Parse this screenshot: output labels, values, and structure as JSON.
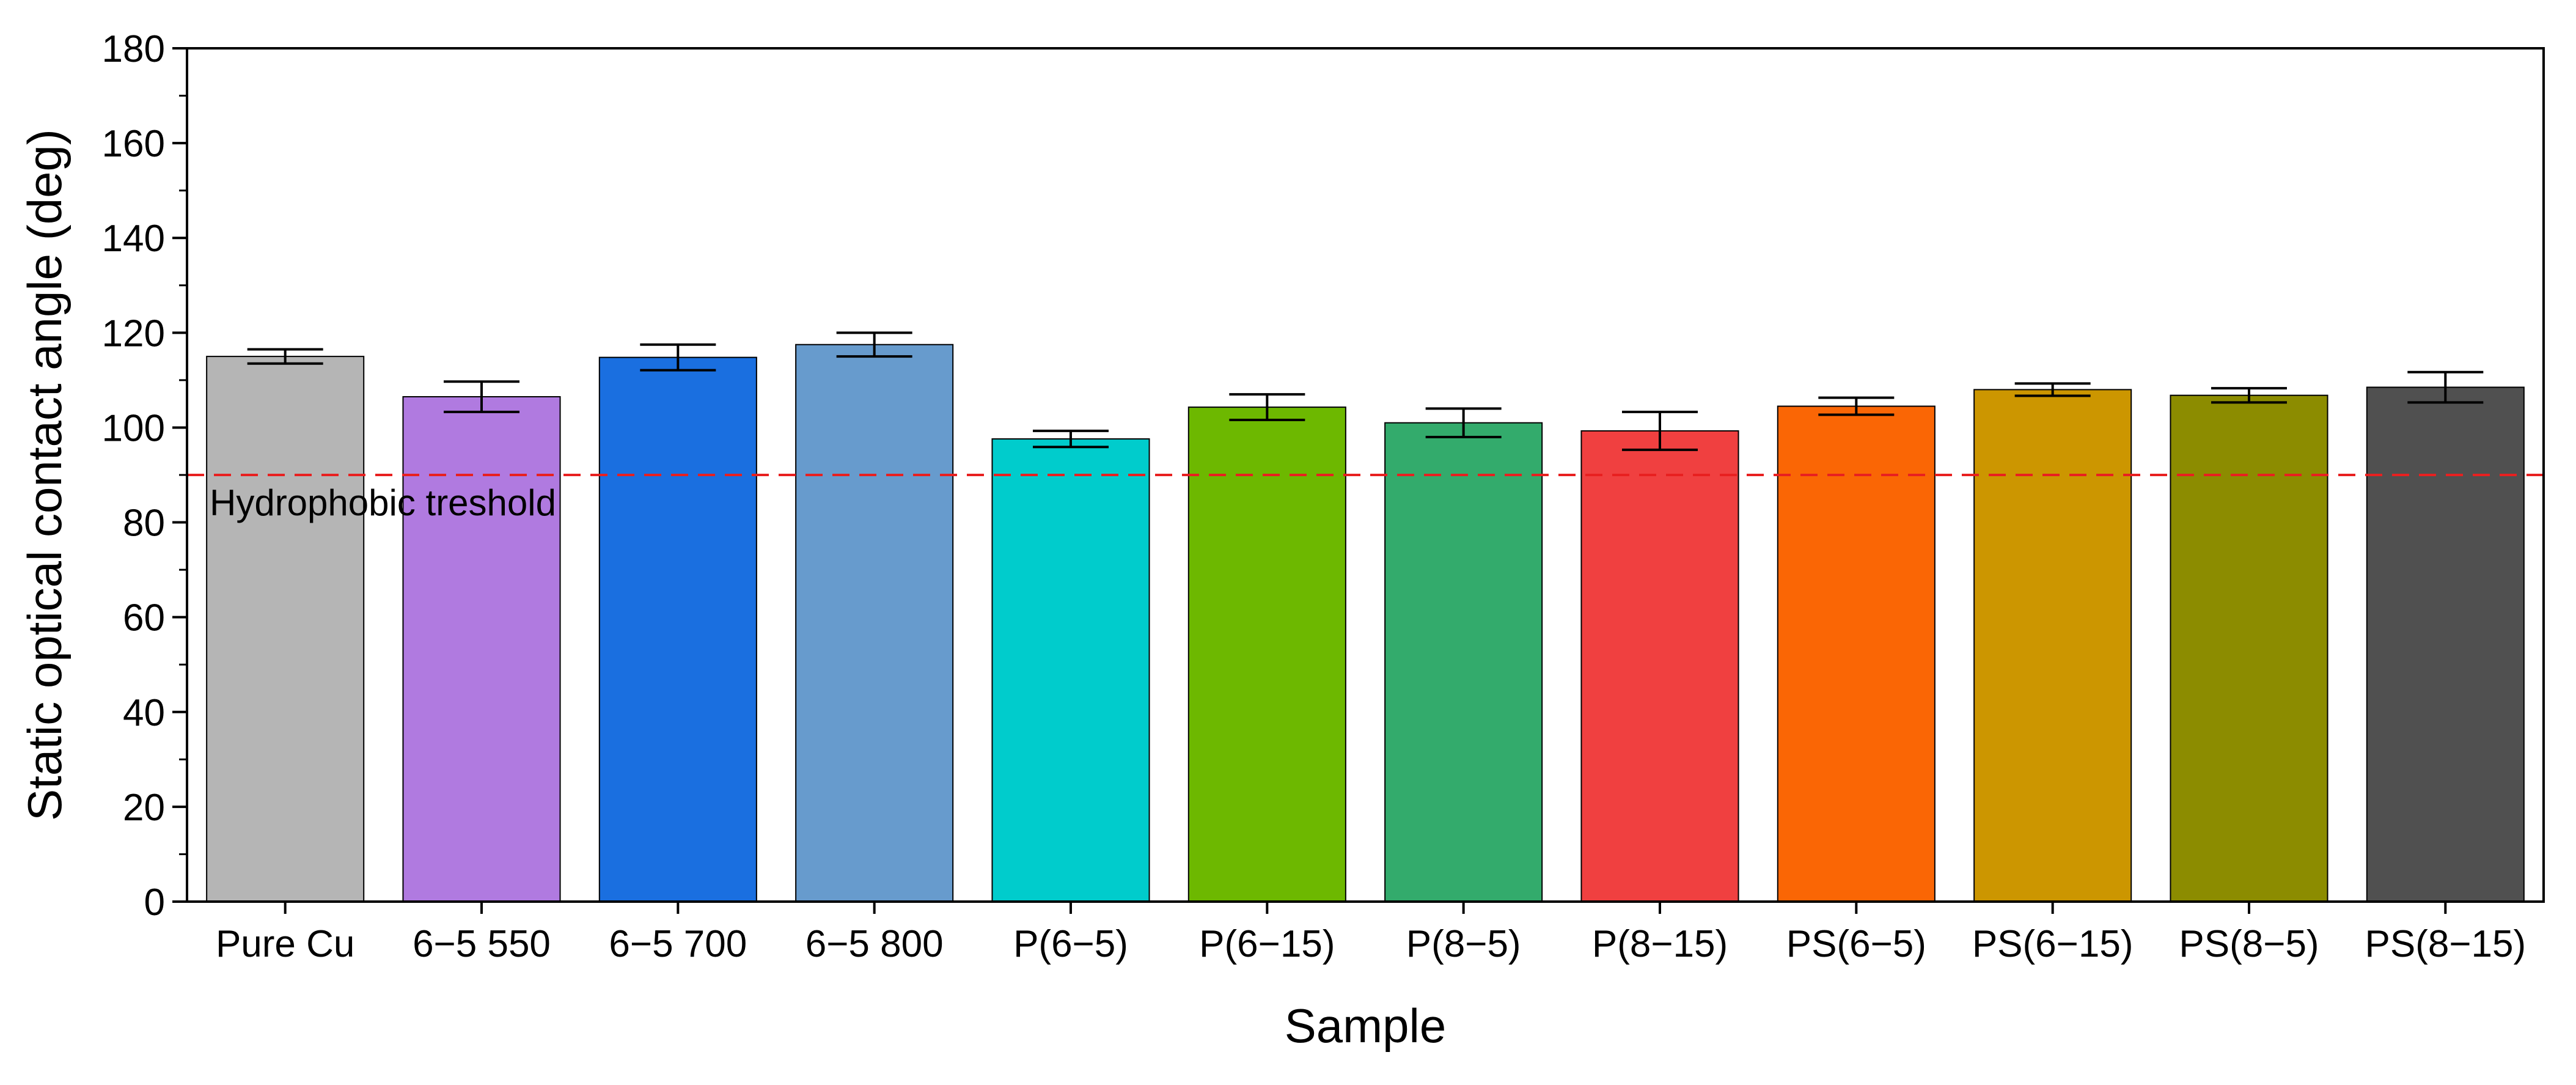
{
  "chart_data": {
    "type": "bar",
    "title": "",
    "xlabel": "Sample",
    "ylabel": "Static optical contact angle (deg)",
    "ylim": [
      0,
      180
    ],
    "yticks": [
      0,
      20,
      40,
      60,
      80,
      100,
      120,
      140,
      160,
      180
    ],
    "grid": false,
    "categories": [
      "Pure Cu",
      "6−5 550",
      "6−5 700",
      "6−5 800",
      "P(6−5)",
      "P(6−15)",
      "P(8−5)",
      "P(8−15)",
      "PS(6−5)",
      "PS(6−15)",
      "PS(8−5)",
      "PS(8−15)"
    ],
    "values": [
      115,
      106.5,
      114.8,
      117.5,
      97.6,
      104.3,
      101,
      99.3,
      104.5,
      108,
      106.8,
      108.5
    ],
    "errors": [
      1.5,
      3.2,
      2.7,
      2.5,
      1.7,
      2.7,
      3.0,
      4.0,
      1.8,
      1.3,
      1.5,
      3.2
    ],
    "colors": [
      "#b5b5b5",
      "#b07ae0",
      "#1a6fe0",
      "#679bcd",
      "#00cccc",
      "#6db800",
      "#33ab6c",
      "#f04040",
      "#fa6605",
      "#cc9600",
      "#8c8c00",
      "#505050"
    ],
    "reference_line": {
      "value": 90,
      "label": "Hydrophobic treshold",
      "color": "#e82020",
      "style": "dashed"
    }
  }
}
